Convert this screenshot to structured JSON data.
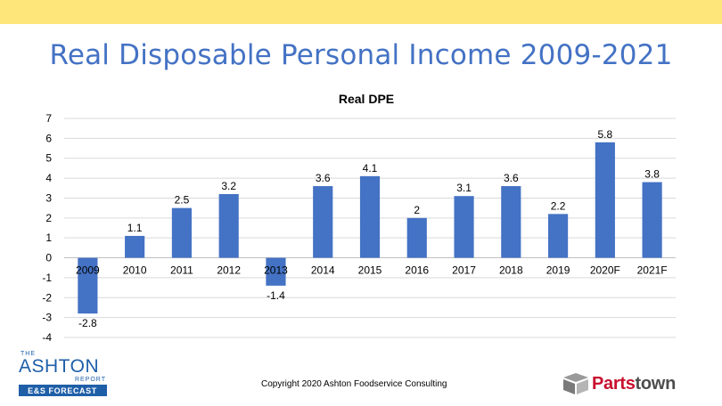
{
  "header": {
    "title": "Real Disposable Personal Income 2009-2021"
  },
  "chart_data": {
    "type": "bar",
    "title": "Real DPE",
    "categories": [
      "2009",
      "2010",
      "2011",
      "2012",
      "2013",
      "2014",
      "2015",
      "2016",
      "2017",
      "2018",
      "2019",
      "2020F",
      "2021F"
    ],
    "values": [
      -2.8,
      1.1,
      2.5,
      3.2,
      -1.4,
      3.6,
      4.1,
      2,
      3.1,
      3.6,
      2.2,
      5.8,
      3.8
    ],
    "data_labels": [
      "-2.8",
      "1.1",
      "2.5",
      "3.2",
      "-1.4",
      "3.6",
      "4.1",
      "2",
      "3.1",
      "3.6",
      "2.2",
      "5.8",
      "3.8"
    ],
    "ylim": [
      -4,
      7
    ],
    "yticks": [
      -4,
      -3,
      -2,
      -1,
      0,
      1,
      2,
      3,
      4,
      5,
      6,
      7
    ],
    "xlabel": "",
    "ylabel": "",
    "grid": true,
    "legend": "none",
    "bar_color": "#4472C4"
  },
  "footer": {
    "copyright": "Copyright 2020 Ashton Foodservice Consulting",
    "logo_left": {
      "the": "THE",
      "name": "ASHTON",
      "report": "REPORT",
      "tagline": "E&S FORECAST"
    },
    "logo_right": {
      "part_a": "Parts",
      "part_b": "town"
    }
  },
  "colors": {
    "accent_bar": "#FFE67A",
    "title": "#4472C4",
    "bar": "#4472C4",
    "brand_red": "#C8102E",
    "brand_gray": "#4D4D4D",
    "logo_blue": "#1F5FA8"
  }
}
